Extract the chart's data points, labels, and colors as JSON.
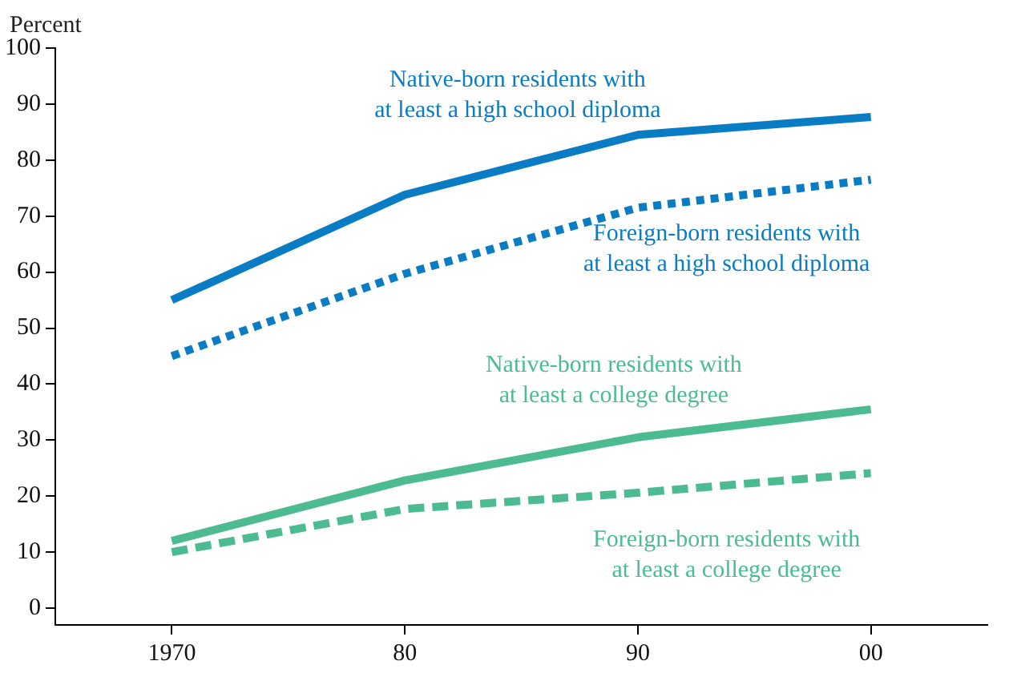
{
  "chart_data": {
    "type": "line",
    "ylabel": "Percent",
    "categories": [
      "1970",
      "80",
      "90",
      "00"
    ],
    "ylim": [
      -3,
      100
    ],
    "yticks": [
      0,
      10,
      20,
      30,
      40,
      50,
      60,
      70,
      80,
      90,
      100
    ],
    "grid": false,
    "legend": false,
    "marker": "none",
    "series": [
      {
        "name": "Native-born residents with\nat least a high school diploma",
        "color": "#0a7cc4",
        "line_style": "solid",
        "values": [
          55,
          73.8,
          84.5,
          87.7
        ]
      },
      {
        "name": "Foreign-born residents with\nat least a high school diploma",
        "color": "#0a7cc4",
        "line_style": "dotted",
        "values": [
          45,
          59.7,
          71.5,
          76.5
        ]
      },
      {
        "name": "Native-born residents with\nat least a college degree",
        "color": "#4dbb92",
        "line_style": "solid",
        "values": [
          12,
          22.8,
          30.5,
          35.5
        ]
      },
      {
        "name": "Foreign-born residents with\nat least a college degree",
        "color": "#4dbb92",
        "line_style": "dashed",
        "values": [
          10,
          17.7,
          20.6,
          24.1
        ]
      }
    ]
  }
}
